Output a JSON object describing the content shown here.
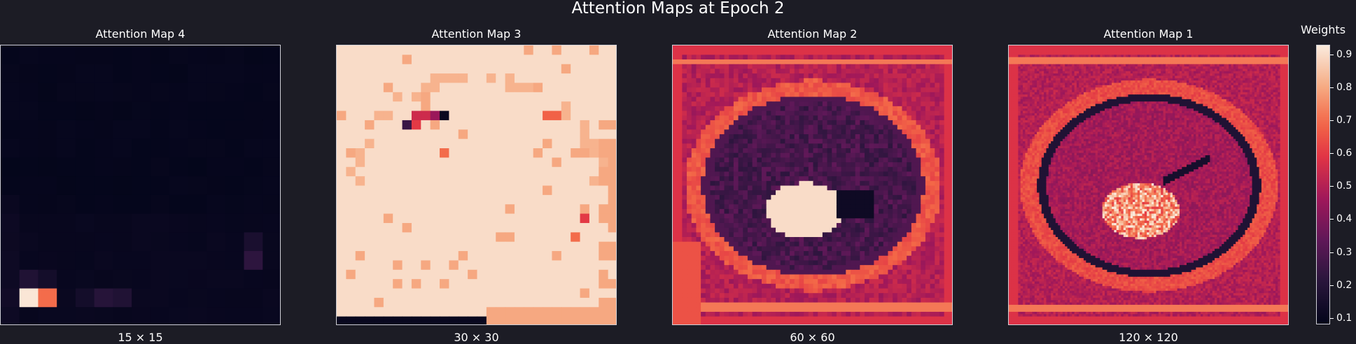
{
  "figure": {
    "title": "Attention Maps at Epoch 2"
  },
  "chart_data": {
    "type": "heatmap",
    "colormap": "rocket",
    "colorbar": {
      "label": "Weights",
      "range": [
        0.08,
        0.93
      ],
      "ticks": [
        "0.1",
        "0.2",
        "0.3",
        "0.4",
        "0.5",
        "0.6",
        "0.7",
        "0.8",
        "0.9"
      ]
    },
    "panels": [
      {
        "title": "Attention Map 4",
        "size_label": "15 × 15",
        "resolution": 15,
        "pattern": "sparse-low",
        "highlights": [
          {
            "row": 13,
            "col": 1,
            "value": 0.92
          },
          {
            "row": 13,
            "col": 2,
            "value": 0.7
          },
          {
            "row": 12,
            "col": 1,
            "value": 0.18
          },
          {
            "row": 12,
            "col": 2,
            "value": 0.14
          },
          {
            "row": 13,
            "col": 5,
            "value": 0.2
          },
          {
            "row": 13,
            "col": 6,
            "value": 0.18
          },
          {
            "row": 13,
            "col": 4,
            "value": 0.14
          },
          {
            "row": 11,
            "col": 13,
            "value": 0.22
          },
          {
            "row": 10,
            "col": 13,
            "value": 0.16
          },
          {
            "row": 13,
            "col": 0,
            "value": 0.13
          }
        ]
      },
      {
        "title": "Attention Map 3",
        "size_label": "30 × 30",
        "resolution": 30,
        "pattern": "sparse-high"
      },
      {
        "title": "Attention Map 2",
        "size_label": "60 × 60",
        "resolution": 60,
        "pattern": "brain-coarse"
      },
      {
        "title": "Attention Map 1",
        "size_label": "120 × 120",
        "resolution": 120,
        "pattern": "brain-fine"
      }
    ]
  }
}
